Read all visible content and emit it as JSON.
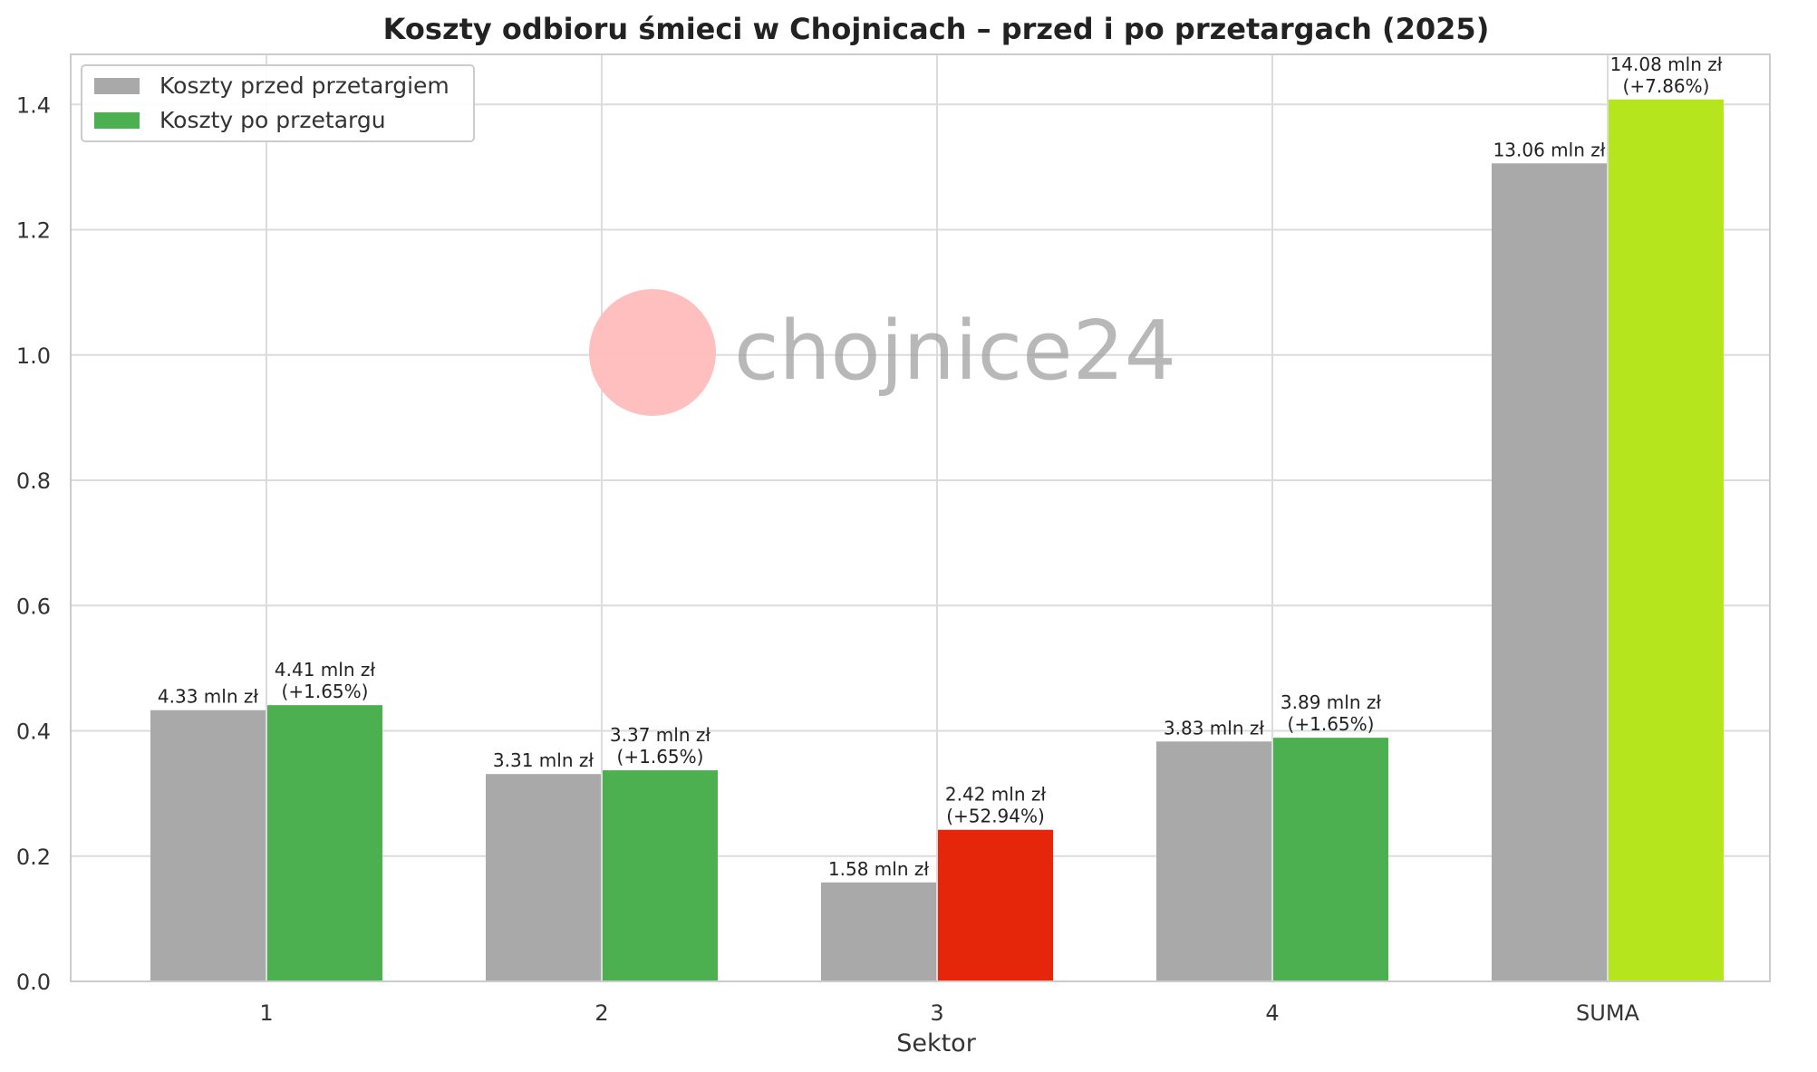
{
  "chart_data": {
    "type": "bar",
    "title": "Koszty odbioru śmieci w Chojnicach – przed i po przetargach (2025)",
    "xlabel": "Sektor",
    "ylabel": "",
    "ylim": [
      0,
      1.48
    ],
    "yticks": [
      "0.0",
      "0.2",
      "0.4",
      "0.6",
      "0.8",
      "1.0",
      "1.2",
      "1.4"
    ],
    "grid": true,
    "legend_position": "top-left",
    "categories": [
      "1",
      "2",
      "3",
      "4",
      "SUMA"
    ],
    "series": [
      {
        "name": "Koszty przed przetargiem",
        "color": "#a9a9a9",
        "values": [
          0.433,
          0.331,
          0.158,
          0.383,
          1.306
        ],
        "labels": [
          [
            "4.33 mln zł"
          ],
          [
            "3.31 mln zł"
          ],
          [
            "1.58 mln zł"
          ],
          [
            "3.83 mln zł"
          ],
          [
            "13.06 mln zł"
          ]
        ]
      },
      {
        "name": "Koszty po przetargu",
        "color": "#4caf50",
        "values": [
          0.441,
          0.337,
          0.242,
          0.389,
          1.408
        ],
        "bar_colors": [
          "#4caf50",
          "#4caf50",
          "#e6260a",
          "#4caf50",
          "#b5e61d"
        ],
        "labels": [
          [
            "4.41 mln zł",
            "(+1.65%)"
          ],
          [
            "3.37 mln zł",
            "(+1.65%)"
          ],
          [
            "2.42 mln zł",
            "(+52.94%)"
          ],
          [
            "3.89 mln zł",
            "(+1.65%)"
          ],
          [
            "14.08 mln zł",
            "(+7.86%)"
          ]
        ]
      }
    ]
  },
  "watermark": {
    "text": "chojnice24",
    "circle_color": "#ffbcbc"
  }
}
